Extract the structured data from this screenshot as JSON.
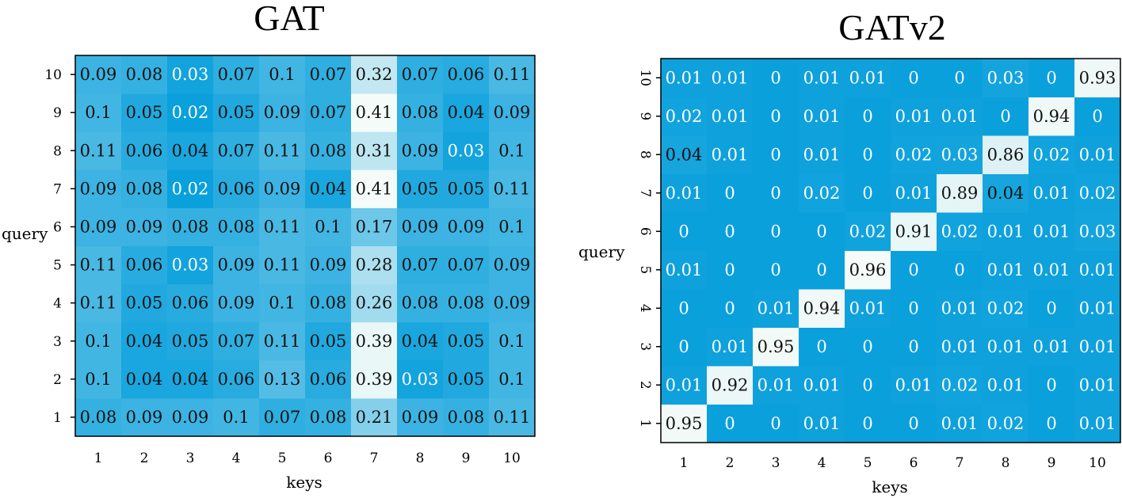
{
  "chart_data": [
    {
      "type": "heatmap",
      "title": "GAT",
      "xlabel": "keys",
      "ylabel": "query",
      "x_ticks": [
        "1",
        "2",
        "3",
        "4",
        "5",
        "6",
        "7",
        "8",
        "9",
        "10"
      ],
      "y_ticks": [
        "1",
        "2",
        "3",
        "4",
        "5",
        "6",
        "7",
        "8",
        "9",
        "10"
      ],
      "colors": {
        "low": "#0aa0dc",
        "high": "#f4fbf8",
        "text_dark": "#111111",
        "text_light": "#ffffff",
        "border": "#000000"
      },
      "values": [
        [
          0.08,
          0.09,
          0.09,
          0.1,
          0.07,
          0.08,
          0.21,
          0.09,
          0.08,
          0.11
        ],
        [
          0.1,
          0.04,
          0.04,
          0.06,
          0.13,
          0.06,
          0.39,
          0.03,
          0.05,
          0.1
        ],
        [
          0.1,
          0.04,
          0.05,
          0.07,
          0.11,
          0.05,
          0.39,
          0.04,
          0.05,
          0.1
        ],
        [
          0.11,
          0.05,
          0.06,
          0.09,
          0.1,
          0.08,
          0.26,
          0.08,
          0.08,
          0.09
        ],
        [
          0.11,
          0.06,
          0.03,
          0.09,
          0.11,
          0.09,
          0.28,
          0.07,
          0.07,
          0.09
        ],
        [
          0.09,
          0.09,
          0.08,
          0.08,
          0.11,
          0.1,
          0.17,
          0.09,
          0.09,
          0.1
        ],
        [
          0.09,
          0.08,
          0.02,
          0.06,
          0.09,
          0.04,
          0.41,
          0.05,
          0.05,
          0.11
        ],
        [
          0.11,
          0.06,
          0.04,
          0.07,
          0.11,
          0.08,
          0.31,
          0.09,
          0.03,
          0.1
        ],
        [
          0.1,
          0.05,
          0.02,
          0.05,
          0.09,
          0.07,
          0.41,
          0.08,
          0.04,
          0.09
        ],
        [
          0.09,
          0.08,
          0.03,
          0.07,
          0.1,
          0.07,
          0.32,
          0.07,
          0.06,
          0.11
        ]
      ],
      "light_text_values": [
        0.02,
        0.03
      ]
    },
    {
      "type": "heatmap",
      "title": "GATv2",
      "xlabel": "keys",
      "ylabel": "query",
      "x_ticks": [
        "1",
        "2",
        "3",
        "4",
        "5",
        "6",
        "7",
        "8",
        "9",
        "10"
      ],
      "y_ticks": [
        "1",
        "2",
        "3",
        "4",
        "5",
        "6",
        "7",
        "8",
        "9",
        "10"
      ],
      "colors": {
        "low": "#0aa0dc",
        "high": "#f4fbf8",
        "text_dark": "#111111",
        "text_light": "#ffffff",
        "border": "#000000"
      },
      "values": [
        [
          0.95,
          0,
          0,
          0.01,
          0,
          0,
          0.01,
          0.02,
          0,
          0.01
        ],
        [
          0.01,
          0.92,
          0.01,
          0.01,
          0,
          0.01,
          0.02,
          0.01,
          0,
          0.01
        ],
        [
          0,
          0.01,
          0.95,
          0,
          0,
          0,
          0.01,
          0.01,
          0.01,
          0.01
        ],
        [
          0,
          0,
          0.01,
          0.94,
          0.01,
          0,
          0.01,
          0.02,
          0,
          0.01
        ],
        [
          0.01,
          0,
          0,
          0,
          0.96,
          0,
          0,
          0.01,
          0.01,
          0.01
        ],
        [
          0,
          0,
          0,
          0,
          0.02,
          0.91,
          0.02,
          0.01,
          0.01,
          0.03
        ],
        [
          0.01,
          0,
          0,
          0.02,
          0,
          0.01,
          0.89,
          0.04,
          0.01,
          0.02
        ],
        [
          0.04,
          0.01,
          0,
          0.01,
          0,
          0.02,
          0.03,
          0.86,
          0.02,
          0.01
        ],
        [
          0.02,
          0.01,
          0,
          0.01,
          0,
          0.01,
          0.01,
          0,
          0.94,
          0
        ],
        [
          0.01,
          0.01,
          0,
          0.01,
          0.01,
          0,
          0,
          0.03,
          0,
          0.93
        ]
      ],
      "dark_text_values": [
        0.04
      ]
    }
  ]
}
